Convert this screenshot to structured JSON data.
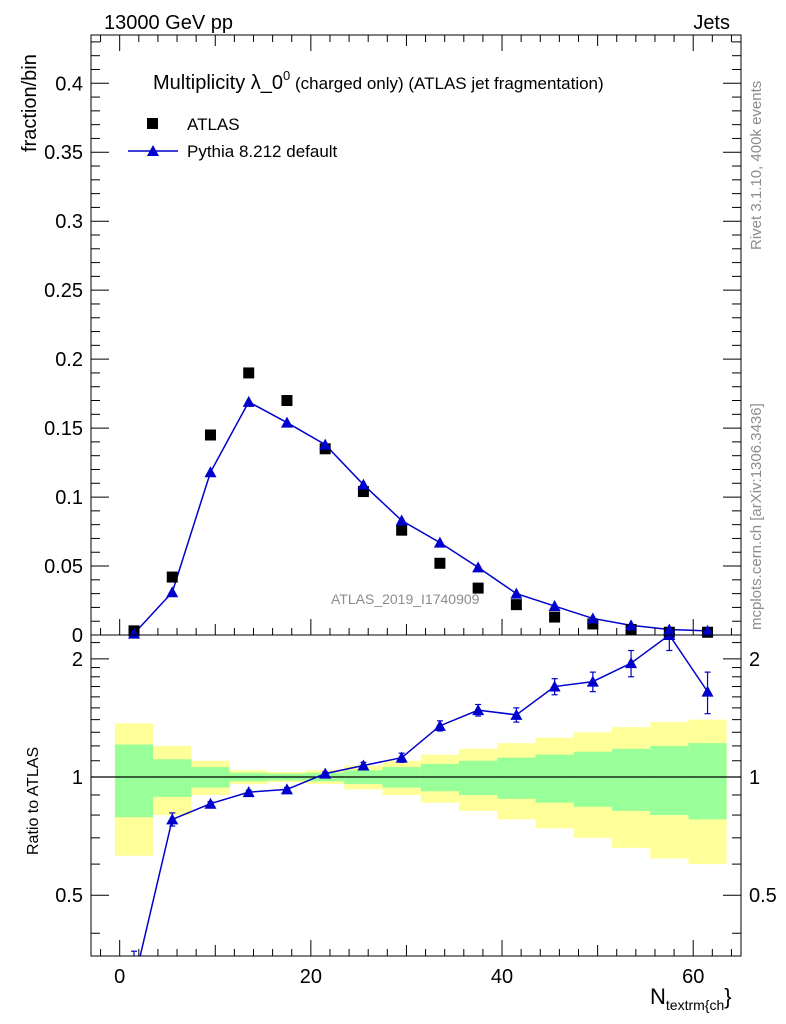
{
  "header": {
    "left": "13000 GeV pp",
    "right": "Jets"
  },
  "side": {
    "version": "Rivet 3.1.10,  400k events",
    "site": "mcplots.cern.ch [arXiv:1306.3436]"
  },
  "title": {
    "main": "Multiplicity λ_0",
    "sup": "0",
    "rest": " (charged only) (ATLAS jet fragmentation)"
  },
  "analysis_label": "ATLAS_2019_I1740909",
  "legend": [
    {
      "name": "ATLAS",
      "marker": "square"
    },
    {
      "name": "Pythia 8.212 default",
      "marker": "triangle"
    }
  ],
  "axes": {
    "ylabel_top": "fraction/bin",
    "ylabel_bottom": "Ratio to ATLAS",
    "xlabel_main": "N",
    "xlabel_sub": "textrm{ch",
    "xlabel_end": "}"
  },
  "colors": {
    "pythia": "#0000cc",
    "data": "#000000",
    "band_inner": "#99ff99",
    "band_outer": "#ffff99"
  },
  "chart_data": {
    "type": "scatter",
    "x_range": [
      -3,
      65
    ],
    "ylim_top": [
      0,
      0.435
    ],
    "ylim_bottom": [
      0.35,
      2.3
    ],
    "yticks_top": [
      0,
      0.05,
      0.1,
      0.15,
      0.2,
      0.25,
      0.3,
      0.35,
      0.4
    ],
    "yticks_top_labels": [
      "0",
      "0.05",
      "0.1",
      "0.15",
      "0.2",
      "0.25",
      "0.3",
      "0.35",
      "0.4"
    ],
    "yticks_bottom": [
      0.5,
      1,
      2
    ],
    "yticks_bottom_labels": [
      "0.5",
      "1",
      "2"
    ],
    "xticks": [
      0,
      20,
      40,
      60
    ],
    "xticks_labels": [
      "0",
      "20",
      "40",
      "60"
    ],
    "bin_edges": [
      -0.5,
      3.5,
      7.5,
      11.5,
      15.5,
      19.5,
      23.5,
      27.5,
      31.5,
      35.5,
      39.5,
      43.5,
      47.5,
      51.5,
      55.5,
      59.5,
      63.5
    ],
    "x": [
      1.5,
      5.5,
      9.5,
      13.5,
      17.5,
      21.5,
      25.5,
      29.5,
      33.5,
      37.5,
      41.5,
      45.5,
      49.5,
      53.5,
      57.5,
      61.5
    ],
    "series": [
      {
        "name": "ATLAS",
        "values": [
          0.003,
          0.042,
          0.145,
          0.19,
          0.17,
          0.135,
          0.104,
          0.076,
          0.052,
          0.034,
          0.022,
          0.013,
          0.008,
          0.004,
          0.002,
          0.002
        ]
      },
      {
        "name": "Pythia 8.212 default",
        "values": [
          0.001,
          0.031,
          0.118,
          0.169,
          0.154,
          0.138,
          0.109,
          0.083,
          0.067,
          0.049,
          0.03,
          0.021,
          0.012,
          0.007,
          0.004,
          0.003
        ],
        "errors": [
          0.0003,
          0.001,
          0.002,
          0.003,
          0.003,
          0.003,
          0.002,
          0.002,
          0.002,
          0.001,
          0.001,
          0.001,
          0.0005,
          0.0005,
          0.0005,
          0.0003
        ]
      }
    ],
    "ratio": {
      "values": [
        0.3,
        0.78,
        0.855,
        0.915,
        0.93,
        1.02,
        1.07,
        1.12,
        1.35,
        1.48,
        1.44,
        1.7,
        1.75,
        1.95,
        2.3,
        1.65
      ],
      "errors": [
        0.02,
        0.03,
        0.01,
        0.01,
        0.01,
        0.01,
        0.02,
        0.03,
        0.04,
        0.05,
        0.06,
        0.08,
        0.1,
        0.15,
        0.2,
        0.2
      ],
      "band_inner_half": [
        0.21,
        0.11,
        0.06,
        0.025,
        0.02,
        0.025,
        0.04,
        0.06,
        0.08,
        0.1,
        0.12,
        0.14,
        0.16,
        0.18,
        0.2,
        0.22
      ],
      "band_outer_half": [
        0.37,
        0.2,
        0.1,
        0.04,
        0.03,
        0.04,
        0.07,
        0.1,
        0.14,
        0.18,
        0.22,
        0.26,
        0.3,
        0.34,
        0.38,
        0.4
      ]
    }
  }
}
